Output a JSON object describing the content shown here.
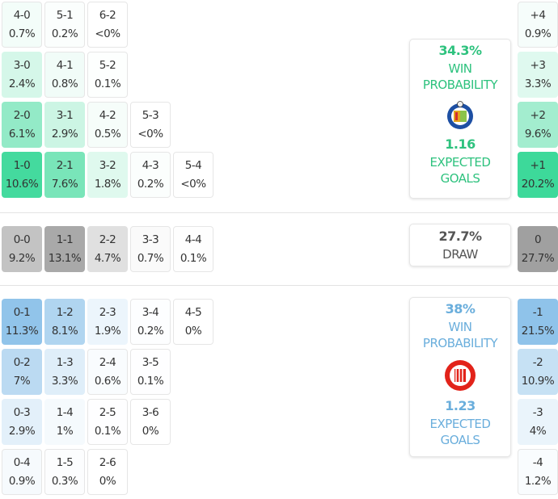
{
  "colors": {
    "home": "#3dd99a",
    "draw": "#a9a9a9",
    "away": "#8fc3ea",
    "home_text": "#2ec27e",
    "away_text": "#6aaedc",
    "draw_text": "#555555"
  },
  "home_grid": [
    [
      {
        "score": "4-0",
        "pct": "0.7%"
      },
      {
        "score": "5-1",
        "pct": "0.2%"
      },
      {
        "score": "6-2",
        "pct": "<0%"
      }
    ],
    [
      {
        "score": "3-0",
        "pct": "2.4%"
      },
      {
        "score": "4-1",
        "pct": "0.8%"
      },
      {
        "score": "5-2",
        "pct": "0.1%"
      }
    ],
    [
      {
        "score": "2-0",
        "pct": "6.1%"
      },
      {
        "score": "3-1",
        "pct": "2.9%"
      },
      {
        "score": "4-2",
        "pct": "0.5%"
      },
      {
        "score": "5-3",
        "pct": "<0%"
      }
    ],
    [
      {
        "score": "1-0",
        "pct": "10.6%"
      },
      {
        "score": "2-1",
        "pct": "7.6%"
      },
      {
        "score": "3-2",
        "pct": "1.8%"
      },
      {
        "score": "4-3",
        "pct": "0.2%"
      },
      {
        "score": "5-4",
        "pct": "<0%"
      }
    ]
  ],
  "draw_grid": [
    [
      {
        "score": "0-0",
        "pct": "9.2%"
      },
      {
        "score": "1-1",
        "pct": "13.1%"
      },
      {
        "score": "2-2",
        "pct": "4.7%"
      },
      {
        "score": "3-3",
        "pct": "0.7%"
      },
      {
        "score": "4-4",
        "pct": "0.1%"
      }
    ]
  ],
  "away_grid": [
    [
      {
        "score": "0-1",
        "pct": "11.3%"
      },
      {
        "score": "1-2",
        "pct": "8.1%"
      },
      {
        "score": "2-3",
        "pct": "1.9%"
      },
      {
        "score": "3-4",
        "pct": "0.2%"
      },
      {
        "score": "4-5",
        "pct": "0%"
      }
    ],
    [
      {
        "score": "0-2",
        "pct": "7%"
      },
      {
        "score": "1-3",
        "pct": "3.3%"
      },
      {
        "score": "2-4",
        "pct": "0.6%"
      },
      {
        "score": "3-5",
        "pct": "0.1%"
      }
    ],
    [
      {
        "score": "0-3",
        "pct": "2.9%"
      },
      {
        "score": "1-4",
        "pct": "1%"
      },
      {
        "score": "2-5",
        "pct": "0.1%"
      },
      {
        "score": "3-6",
        "pct": "0%"
      }
    ],
    [
      {
        "score": "0-4",
        "pct": "0.9%"
      },
      {
        "score": "1-5",
        "pct": "0.3%"
      },
      {
        "score": "2-6",
        "pct": "0%"
      }
    ]
  ],
  "margins_home": [
    {
      "score": "+4",
      "pct": "0.9%"
    },
    {
      "score": "+3",
      "pct": "3.3%"
    },
    {
      "score": "+2",
      "pct": "9.6%"
    },
    {
      "score": "+1",
      "pct": "20.2%"
    }
  ],
  "margins_draw": [
    {
      "score": "0",
      "pct": "27.7%"
    }
  ],
  "margins_away": [
    {
      "score": "-1",
      "pct": "21.5%"
    },
    {
      "score": "-2",
      "pct": "10.9%"
    },
    {
      "score": "-3",
      "pct": "4%"
    },
    {
      "score": "-4",
      "pct": "1.2%"
    }
  ],
  "home_card": {
    "win_pct": "34.3%",
    "win_label_1": "WIN",
    "win_label_2": "PROBABILITY",
    "logo": "getafe-crest",
    "xg": "1.16",
    "xg_label_1": "EXPECTED",
    "xg_label_2": "GOALS"
  },
  "draw_card": {
    "pct": "27.7%",
    "label": "DRAW"
  },
  "away_card": {
    "win_pct": "38%",
    "win_label_1": "WIN",
    "win_label_2": "PROBABILITY",
    "logo": "girona-crest",
    "xg": "1.23",
    "xg_label_1": "EXPECTED",
    "xg_label_2": "GOALS"
  }
}
